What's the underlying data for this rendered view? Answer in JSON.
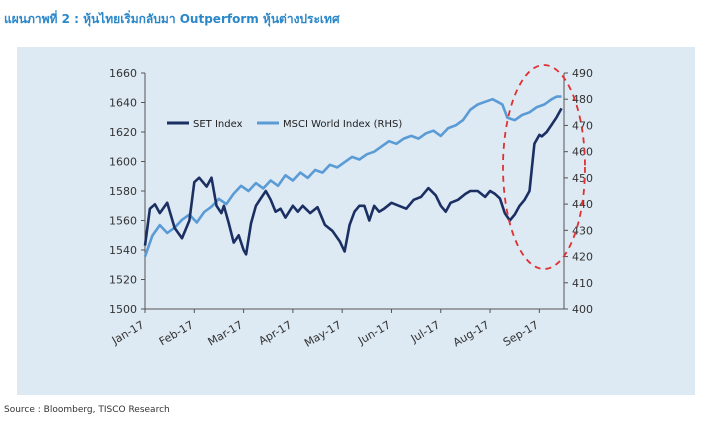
{
  "title": "แผนภาพที่ 2 : หุ้นไทยเริ่มกลับมา Outperform หุ้นต่างประเทศ",
  "source": "Source : Bloomberg, TISCO Research",
  "colors": {
    "set": "#1b2f63",
    "msci": "#5b9bd5",
    "annotation": "#e03030",
    "panel": "#dde9f3"
  },
  "chart_data": {
    "type": "line",
    "title": "แผนภาพที่ 2 : หุ้นไทยเริ่มกลับมา Outperform หุ้นต่างประเทศ",
    "xlabel": "",
    "ylabel": "",
    "y2label": "",
    "categories": [
      "Jan-17",
      "Feb-17",
      "Mar-17",
      "Apr-17",
      "May-17",
      "Jun-17",
      "Jul-17",
      "Aug-17",
      "Sep-17"
    ],
    "ylim": [
      1500,
      1660
    ],
    "yticks": [
      1500,
      1520,
      1540,
      1560,
      1580,
      1600,
      1620,
      1640,
      1660
    ],
    "y2lim": [
      400,
      490
    ],
    "y2ticks": [
      400,
      410,
      420,
      430,
      440,
      450,
      460,
      470,
      480,
      490
    ],
    "legend_position": "top-left",
    "grid": false,
    "series": [
      {
        "name": "SET Index",
        "axis": "left",
        "x": [
          0,
          0.1,
          0.2,
          0.3,
          0.45,
          0.6,
          0.75,
          0.9,
          1.0,
          1.1,
          1.25,
          1.35,
          1.45,
          1.55,
          1.6,
          1.7,
          1.8,
          1.9,
          2.0,
          2.05,
          2.15,
          2.25,
          2.35,
          2.45,
          2.55,
          2.65,
          2.75,
          2.85,
          3.0,
          3.1,
          3.2,
          3.35,
          3.5,
          3.65,
          3.8,
          3.95,
          4.05,
          4.15,
          4.25,
          4.35,
          4.45,
          4.55,
          4.65,
          4.75,
          4.85,
          5.0,
          5.15,
          5.3,
          5.45,
          5.6,
          5.75,
          5.9,
          6.0,
          6.1,
          6.2,
          6.35,
          6.5,
          6.6,
          6.75,
          6.9,
          7.0,
          7.1,
          7.2,
          7.3,
          7.4,
          7.5,
          7.6,
          7.7,
          7.8,
          7.9,
          8.0,
          8.05,
          8.15,
          8.25,
          8.35,
          8.45
        ],
        "values": [
          1543,
          1568,
          1571,
          1565,
          1572,
          1555,
          1548,
          1560,
          1586,
          1589,
          1583,
          1589,
          1570,
          1565,
          1570,
          1558,
          1545,
          1550,
          1540,
          1537,
          1558,
          1570,
          1575,
          1580,
          1574,
          1566,
          1568,
          1562,
          1570,
          1566,
          1570,
          1565,
          1569,
          1557,
          1553,
          1546,
          1539,
          1557,
          1566,
          1570,
          1570,
          1560,
          1570,
          1566,
          1568,
          1572,
          1570,
          1568,
          1574,
          1576,
          1582,
          1577,
          1570,
          1566,
          1572,
          1574,
          1578,
          1580,
          1580,
          1576,
          1580,
          1578,
          1575,
          1565,
          1560,
          1564,
          1570,
          1574,
          1580,
          1612,
          1618,
          1617,
          1620,
          1625,
          1630,
          1636
        ]
      },
      {
        "name": "MSCI World Index (RHS)",
        "axis": "right",
        "x": [
          0,
          0.15,
          0.3,
          0.45,
          0.6,
          0.75,
          0.9,
          1.05,
          1.2,
          1.35,
          1.5,
          1.65,
          1.8,
          1.95,
          2.1,
          2.25,
          2.4,
          2.55,
          2.7,
          2.85,
          3.0,
          3.15,
          3.3,
          3.45,
          3.6,
          3.75,
          3.9,
          4.05,
          4.2,
          4.35,
          4.5,
          4.65,
          4.8,
          4.95,
          5.1,
          5.25,
          5.4,
          5.55,
          5.7,
          5.85,
          6.0,
          6.15,
          6.3,
          6.45,
          6.6,
          6.75,
          6.9,
          7.05,
          7.15,
          7.25,
          7.35,
          7.5,
          7.65,
          7.8,
          7.95,
          8.1,
          8.25,
          8.35,
          8.45
        ],
        "values": [
          420,
          428,
          432,
          429,
          431,
          434,
          436,
          433,
          437,
          439,
          442,
          440,
          444,
          447,
          445,
          448,
          446,
          449,
          447,
          451,
          449,
          452,
          450,
          453,
          452,
          455,
          454,
          456,
          458,
          457,
          459,
          460,
          462,
          464,
          463,
          465,
          466,
          465,
          467,
          468,
          466,
          469,
          470,
          472,
          476,
          478,
          479,
          480,
          479,
          478,
          473,
          472,
          474,
          475,
          477,
          478,
          480,
          481,
          481
        ]
      }
    ]
  }
}
